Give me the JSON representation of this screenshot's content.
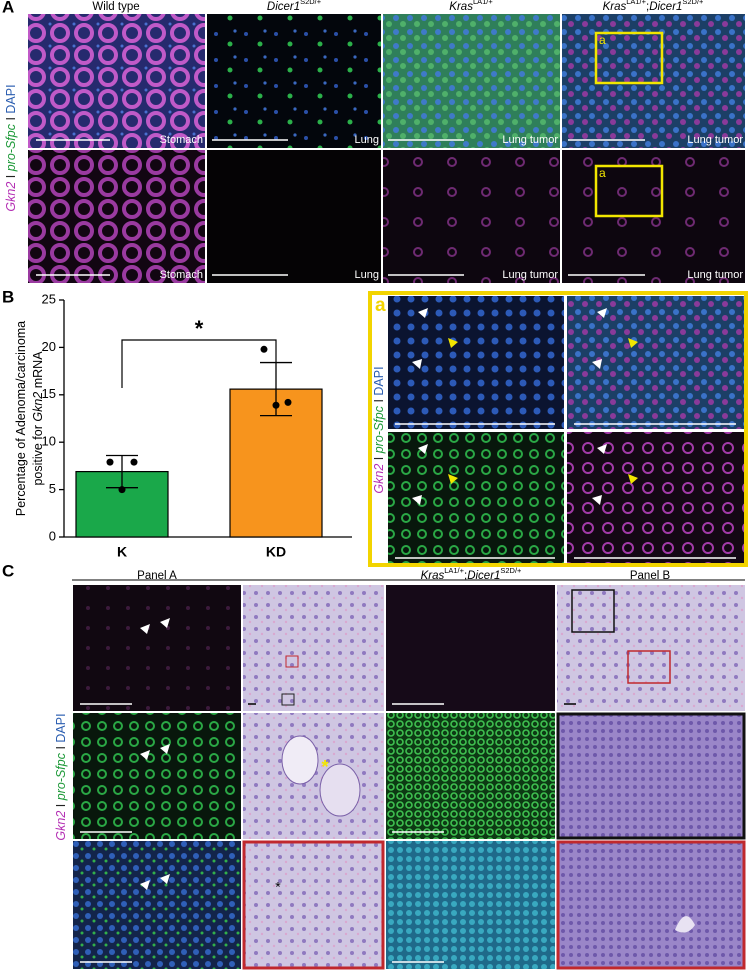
{
  "panel_labels": [
    "A",
    "B",
    "C"
  ],
  "channel_label": [
    {
      "text": "Gkn2",
      "style": "italic",
      "color": "#b42fb4"
    },
    {
      "text": " I ",
      "style": "plain",
      "color": "#222222"
    },
    {
      "text": "pro-Sfpc",
      "style": "italic",
      "color": "#1f9a3a"
    },
    {
      "text": " I ",
      "style": "plain",
      "color": "#222222"
    },
    {
      "text": "DAPI",
      "style": "plain",
      "color": "#2a5db0"
    }
  ],
  "panel_a": {
    "columns": [
      [
        {
          "text": "Wild type",
          "style": "plain"
        }
      ],
      [
        {
          "text": "Dicer1",
          "style": "italic"
        },
        {
          "text": "S2D/+",
          "style": "sup"
        }
      ],
      [
        {
          "text": "Kras",
          "style": "italic"
        },
        {
          "text": "LA1/+",
          "style": "sup"
        }
      ],
      [
        {
          "text": "Kras",
          "style": "italic"
        },
        {
          "text": "LA1/+",
          "style": "sup"
        },
        {
          "text": ";",
          "style": "plain"
        },
        {
          "text": "Dicer1",
          "style": "italic"
        },
        {
          "text": "S2D/+",
          "style": "sup"
        }
      ]
    ],
    "tissues": [
      "Stomach",
      "Lung",
      "Lung tumor",
      "Lung tumor"
    ],
    "inset_label": "a"
  },
  "chart_data": {
    "type": "bar",
    "categories": [
      "K",
      "KD"
    ],
    "values": [
      6.9,
      15.6
    ],
    "errors": [
      1.7,
      2.8
    ],
    "colors": [
      "#1aa84a",
      "#f7941d"
    ],
    "points": [
      [
        7.9,
        7.9,
        5.0
      ],
      [
        19.8,
        14.2,
        13.9
      ]
    ],
    "ylim": [
      0,
      25
    ],
    "yticks": [
      0,
      5,
      10,
      15,
      20,
      25
    ],
    "ylabel": [
      [
        {
          "text": "Percentage of Adenoma/carcinoma",
          "style": "plain"
        }
      ],
      [
        {
          "text": "positive for ",
          "style": "plain"
        },
        {
          "text": "Gkn2",
          "style": "italic"
        },
        {
          "text": " mRNA",
          "style": "plain"
        }
      ]
    ],
    "significance": "*"
  },
  "panel_c": {
    "headers": [
      [
        {
          "text": "Panel A",
          "style": "plain"
        }
      ],
      [
        {
          "text": "Kras",
          "style": "italic"
        },
        {
          "text": "LA1/+",
          "style": "sup"
        },
        {
          "text": ";",
          "style": "plain"
        },
        {
          "text": "Dicer1",
          "style": "italic"
        },
        {
          "text": "S2D/+",
          "style": "sup"
        }
      ],
      [
        {
          "text": "Panel B",
          "style": "plain"
        }
      ]
    ],
    "annotations": [
      "*",
      "*"
    ]
  }
}
